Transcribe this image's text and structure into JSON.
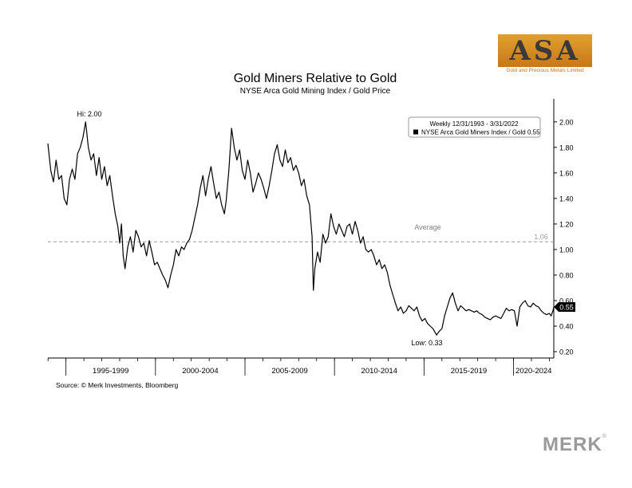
{
  "chart_data": {
    "type": "line",
    "title": "Gold Miners Relative to Gold",
    "subtitle": "NYSE Arca Gold Mining Index / Gold Price",
    "ylim": [
      0.15,
      2.18
    ],
    "yticks": [
      "2.00",
      "1.80",
      "1.60",
      "1.40",
      "1.20",
      "1.00",
      "0.80",
      "0.60",
      "0.40",
      "0.20"
    ],
    "x_periods": [
      "1995-1999",
      "2000-2004",
      "2005-2009",
      "2010-2014",
      "2015-2019",
      "2020-2024"
    ],
    "x_range": [
      1993.99,
      2022.25
    ],
    "legend": {
      "period": "Weekly 12/31/1993 - 3/31/2022",
      "series_label": "NYSE Arca Gold Miners Index / Gold 0.55",
      "position": "top-right"
    },
    "average": {
      "label": "Average",
      "value": 1.06,
      "value_label": "1.06"
    },
    "annotations": {
      "high": {
        "label": "Hi: 2.00",
        "x": 1996.1,
        "y": 2.0
      },
      "low": {
        "label": "Low: 0.33",
        "x": 2015.7,
        "y": 0.33
      }
    },
    "last_value_label": "0.55",
    "series": [
      {
        "name": "NYSE Arca Gold Miners Index / Gold",
        "color": "#000000",
        "points": [
          [
            1993.99,
            1.83
          ],
          [
            1994.15,
            1.62
          ],
          [
            1994.3,
            1.53
          ],
          [
            1994.45,
            1.7
          ],
          [
            1994.6,
            1.55
          ],
          [
            1994.75,
            1.58
          ],
          [
            1994.9,
            1.4
          ],
          [
            1995.05,
            1.35
          ],
          [
            1995.2,
            1.55
          ],
          [
            1995.35,
            1.63
          ],
          [
            1995.5,
            1.55
          ],
          [
            1995.65,
            1.75
          ],
          [
            1995.8,
            1.8
          ],
          [
            1995.95,
            1.88
          ],
          [
            1996.1,
            2.0
          ],
          [
            1996.25,
            1.8
          ],
          [
            1996.4,
            1.7
          ],
          [
            1996.55,
            1.75
          ],
          [
            1996.7,
            1.58
          ],
          [
            1996.85,
            1.72
          ],
          [
            1997.0,
            1.55
          ],
          [
            1997.15,
            1.65
          ],
          [
            1997.3,
            1.5
          ],
          [
            1997.45,
            1.58
          ],
          [
            1997.6,
            1.42
          ],
          [
            1997.75,
            1.28
          ],
          [
            1997.9,
            1.18
          ],
          [
            1998.0,
            1.05
          ],
          [
            1998.1,
            1.2
          ],
          [
            1998.2,
            0.95
          ],
          [
            1998.3,
            0.85
          ],
          [
            1998.45,
            1.02
          ],
          [
            1998.6,
            1.1
          ],
          [
            1998.75,
            0.98
          ],
          [
            1998.9,
            1.15
          ],
          [
            1999.05,
            1.1
          ],
          [
            1999.2,
            1.02
          ],
          [
            1999.35,
            1.05
          ],
          [
            1999.5,
            0.95
          ],
          [
            1999.65,
            1.07
          ],
          [
            1999.8,
            0.98
          ],
          [
            1999.95,
            0.88
          ],
          [
            2000.1,
            0.9
          ],
          [
            2000.25,
            0.85
          ],
          [
            2000.4,
            0.8
          ],
          [
            2000.55,
            0.76
          ],
          [
            2000.7,
            0.7
          ],
          [
            2000.85,
            0.8
          ],
          [
            2001.0,
            0.88
          ],
          [
            2001.15,
            1.0
          ],
          [
            2001.3,
            0.95
          ],
          [
            2001.45,
            1.02
          ],
          [
            2001.6,
            1.0
          ],
          [
            2001.75,
            1.05
          ],
          [
            2001.9,
            1.08
          ],
          [
            2002.05,
            1.15
          ],
          [
            2002.2,
            1.25
          ],
          [
            2002.35,
            1.35
          ],
          [
            2002.5,
            1.48
          ],
          [
            2002.65,
            1.58
          ],
          [
            2002.8,
            1.42
          ],
          [
            2002.95,
            1.55
          ],
          [
            2003.1,
            1.65
          ],
          [
            2003.25,
            1.52
          ],
          [
            2003.4,
            1.4
          ],
          [
            2003.55,
            1.45
          ],
          [
            2003.7,
            1.35
          ],
          [
            2003.85,
            1.28
          ],
          [
            2003.95,
            1.38
          ],
          [
            2004.1,
            1.62
          ],
          [
            2004.25,
            1.95
          ],
          [
            2004.4,
            1.8
          ],
          [
            2004.55,
            1.7
          ],
          [
            2004.7,
            1.78
          ],
          [
            2004.85,
            1.62
          ],
          [
            2005.0,
            1.55
          ],
          [
            2005.15,
            1.7
          ],
          [
            2005.3,
            1.6
          ],
          [
            2005.45,
            1.45
          ],
          [
            2005.6,
            1.52
          ],
          [
            2005.75,
            1.6
          ],
          [
            2005.9,
            1.55
          ],
          [
            2006.05,
            1.48
          ],
          [
            2006.2,
            1.4
          ],
          [
            2006.35,
            1.5
          ],
          [
            2006.5,
            1.62
          ],
          [
            2006.65,
            1.75
          ],
          [
            2006.8,
            1.82
          ],
          [
            2006.95,
            1.7
          ],
          [
            2007.1,
            1.65
          ],
          [
            2007.25,
            1.78
          ],
          [
            2007.4,
            1.68
          ],
          [
            2007.55,
            1.72
          ],
          [
            2007.7,
            1.62
          ],
          [
            2007.85,
            1.66
          ],
          [
            2008.0,
            1.6
          ],
          [
            2008.15,
            1.5
          ],
          [
            2008.3,
            1.55
          ],
          [
            2008.45,
            1.42
          ],
          [
            2008.6,
            1.35
          ],
          [
            2008.75,
            1.1
          ],
          [
            2008.82,
            0.68
          ],
          [
            2008.9,
            0.85
          ],
          [
            2009.05,
            0.98
          ],
          [
            2009.2,
            0.9
          ],
          [
            2009.35,
            1.12
          ],
          [
            2009.5,
            1.05
          ],
          [
            2009.65,
            1.1
          ],
          [
            2009.8,
            1.28
          ],
          [
            2009.95,
            1.18
          ],
          [
            2010.1,
            1.12
          ],
          [
            2010.25,
            1.2
          ],
          [
            2010.4,
            1.15
          ],
          [
            2010.55,
            1.1
          ],
          [
            2010.7,
            1.18
          ],
          [
            2010.85,
            1.2
          ],
          [
            2011.0,
            1.12
          ],
          [
            2011.15,
            1.22
          ],
          [
            2011.3,
            1.15
          ],
          [
            2011.45,
            1.05
          ],
          [
            2011.6,
            1.1
          ],
          [
            2011.75,
            1.0
          ],
          [
            2011.9,
            0.98
          ],
          [
            2012.05,
            1.0
          ],
          [
            2012.2,
            0.95
          ],
          [
            2012.35,
            0.88
          ],
          [
            2012.5,
            0.92
          ],
          [
            2012.65,
            0.85
          ],
          [
            2012.8,
            0.88
          ],
          [
            2012.95,
            0.82
          ],
          [
            2013.1,
            0.72
          ],
          [
            2013.25,
            0.65
          ],
          [
            2013.4,
            0.58
          ],
          [
            2013.55,
            0.52
          ],
          [
            2013.7,
            0.55
          ],
          [
            2013.85,
            0.5
          ],
          [
            2014.0,
            0.52
          ],
          [
            2014.15,
            0.56
          ],
          [
            2014.3,
            0.54
          ],
          [
            2014.45,
            0.52
          ],
          [
            2014.6,
            0.55
          ],
          [
            2014.75,
            0.48
          ],
          [
            2014.9,
            0.44
          ],
          [
            2015.05,
            0.46
          ],
          [
            2015.2,
            0.42
          ],
          [
            2015.35,
            0.4
          ],
          [
            2015.5,
            0.38
          ],
          [
            2015.7,
            0.33
          ],
          [
            2015.85,
            0.36
          ],
          [
            2016.0,
            0.38
          ],
          [
            2016.15,
            0.48
          ],
          [
            2016.3,
            0.55
          ],
          [
            2016.45,
            0.62
          ],
          [
            2016.6,
            0.66
          ],
          [
            2016.75,
            0.58
          ],
          [
            2016.9,
            0.52
          ],
          [
            2017.05,
            0.56
          ],
          [
            2017.2,
            0.54
          ],
          [
            2017.35,
            0.52
          ],
          [
            2017.5,
            0.53
          ],
          [
            2017.65,
            0.52
          ],
          [
            2017.8,
            0.51
          ],
          [
            2017.95,
            0.52
          ],
          [
            2018.1,
            0.5
          ],
          [
            2018.25,
            0.49
          ],
          [
            2018.4,
            0.47
          ],
          [
            2018.55,
            0.46
          ],
          [
            2018.7,
            0.45
          ],
          [
            2018.85,
            0.47
          ],
          [
            2019.0,
            0.48
          ],
          [
            2019.15,
            0.47
          ],
          [
            2019.3,
            0.46
          ],
          [
            2019.45,
            0.5
          ],
          [
            2019.6,
            0.54
          ],
          [
            2019.75,
            0.52
          ],
          [
            2019.9,
            0.53
          ],
          [
            2020.05,
            0.52
          ],
          [
            2020.2,
            0.4
          ],
          [
            2020.35,
            0.55
          ],
          [
            2020.5,
            0.58
          ],
          [
            2020.65,
            0.6
          ],
          [
            2020.8,
            0.56
          ],
          [
            2020.95,
            0.55
          ],
          [
            2021.1,
            0.58
          ],
          [
            2021.25,
            0.56
          ],
          [
            2021.4,
            0.55
          ],
          [
            2021.55,
            0.52
          ],
          [
            2021.7,
            0.5
          ],
          [
            2021.85,
            0.49
          ],
          [
            2022.0,
            0.5
          ],
          [
            2022.1,
            0.48
          ],
          [
            2022.2,
            0.52
          ],
          [
            2022.25,
            0.55
          ]
        ]
      }
    ]
  },
  "source": "Source: © Merk Investments, Bloomberg",
  "logo": {
    "text": "ASA",
    "tagline": "Gold and Precious Metals Limited"
  },
  "watermark": {
    "text": "MERK",
    "mark": "®"
  }
}
